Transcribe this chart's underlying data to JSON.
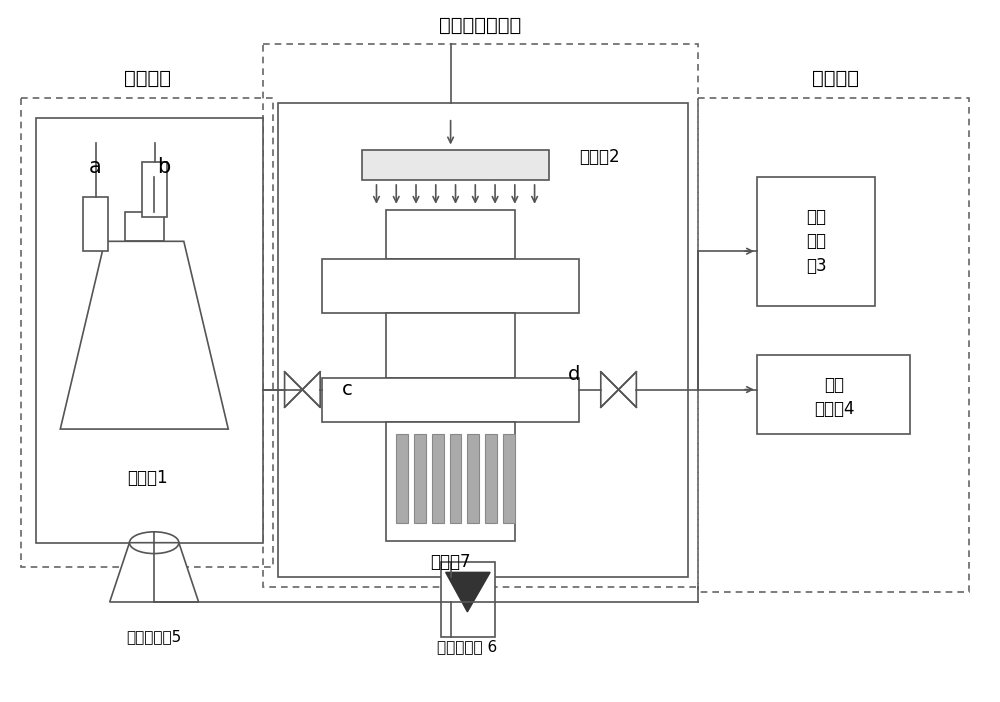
{
  "title_photocatalysis": "光催化反应系统",
  "title_gas_config": "配气系统",
  "title_detection": "检测系统",
  "label_light_source": "光源灯2",
  "label_reactor": "反应器7",
  "label_gas_bottle": "配气瓶1",
  "label_exhaust_l1": "尾气",
  "label_exhaust_l2": "吸收",
  "label_exhaust_l3": "器3",
  "label_gc_l1": "气相",
  "label_gc_l2": "色谱元4",
  "label_pump": "气体循环倘5",
  "label_flow_meter": "转子流量计 6",
  "label_a": "a",
  "label_b": "b",
  "label_c": "c",
  "label_d": "d",
  "bg_color": "#ffffff",
  "lc": "#555555",
  "dc": "#666666",
  "gray_fill": "#aaaaaa"
}
